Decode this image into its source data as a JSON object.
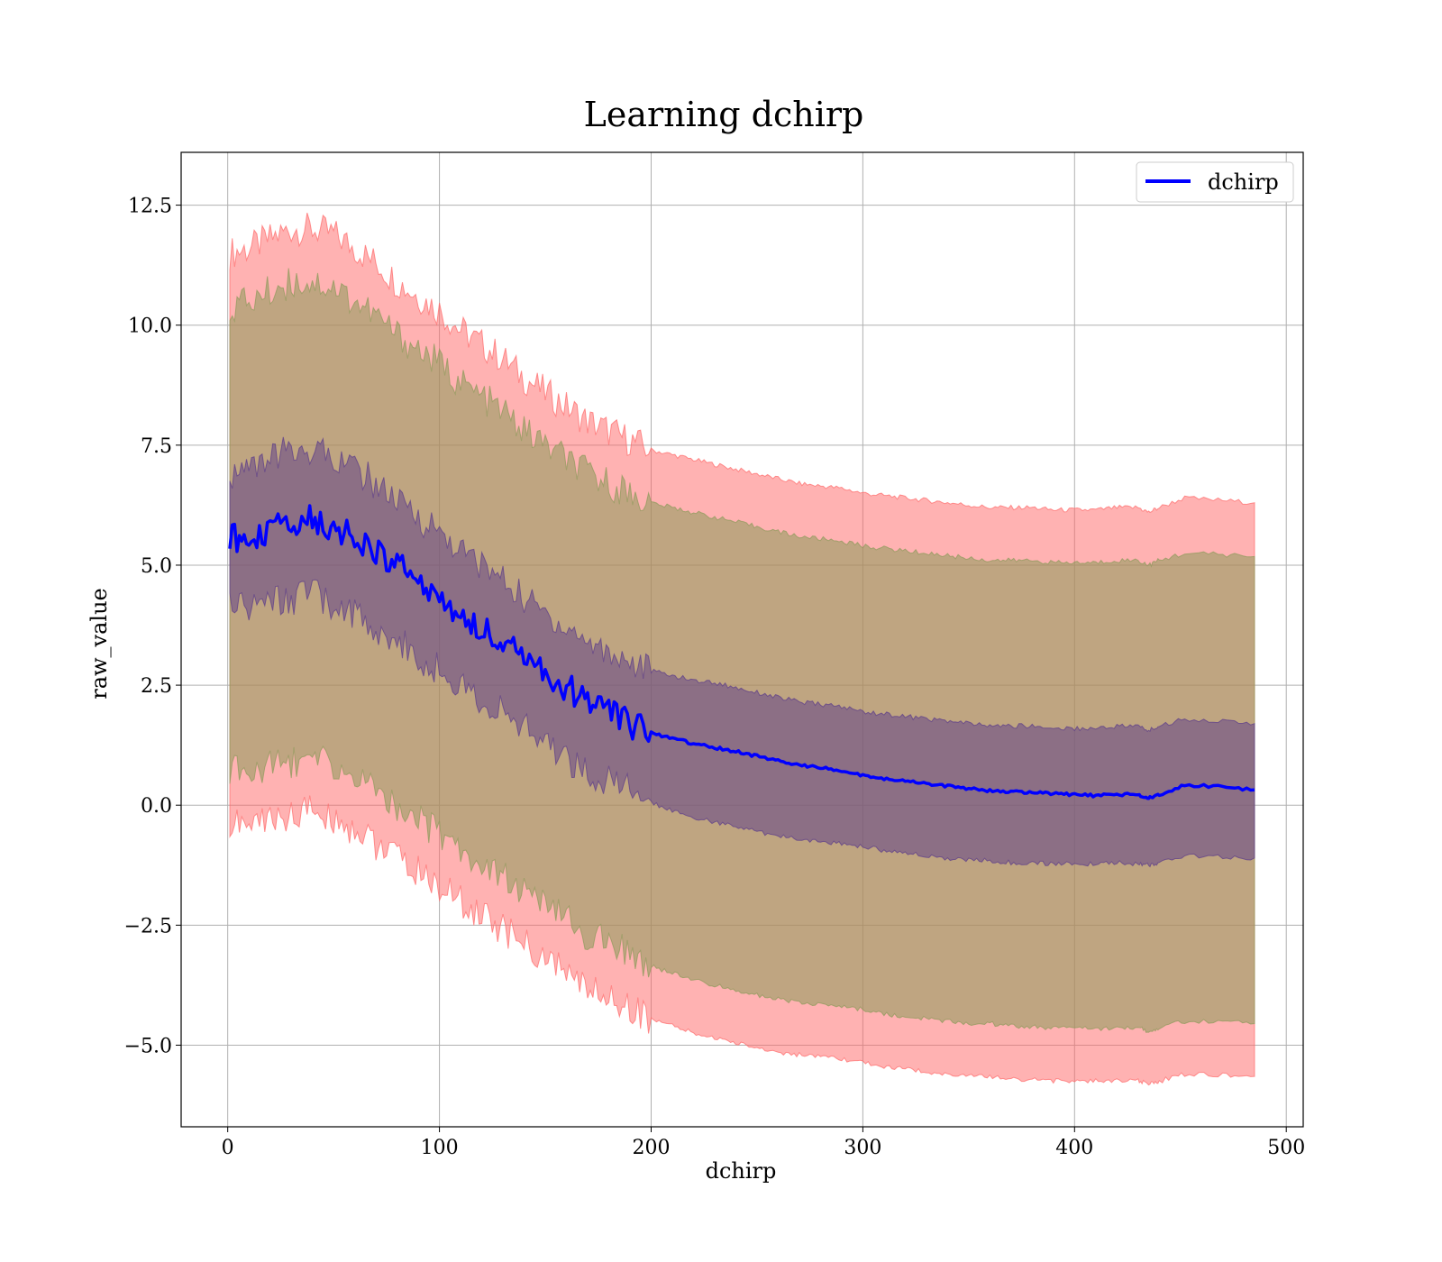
{
  "chart_data": {
    "type": "line",
    "title": "Learning dchirp",
    "xlabel": "dchirp",
    "ylabel": "raw_value",
    "xlim": [
      -22,
      508
    ],
    "ylim": [
      -6.7,
      13.6
    ],
    "xticks": [
      0,
      100,
      200,
      300,
      400,
      500
    ],
    "xtick_labels": [
      "0",
      "100",
      "200",
      "300",
      "400",
      "500"
    ],
    "yticks": [
      -5.0,
      -2.5,
      0.0,
      2.5,
      5.0,
      7.5,
      10.0,
      12.5
    ],
    "ytick_labels": [
      "−5.0",
      "−2.5",
      "0.0",
      "2.5",
      "5.0",
      "7.5",
      "10.0",
      "12.5"
    ],
    "grid": true,
    "legend_position": "top-right",
    "colors": {
      "line": "#0000ff",
      "band_outer": "#ff6666",
      "band_middle": "#8b9a5a",
      "band_inner": "#5a3a8a"
    },
    "series": [
      {
        "name": "dchirp",
        "x": [
          1,
          10,
          20,
          30,
          40,
          50,
          60,
          70,
          80,
          90,
          100,
          110,
          120,
          130,
          140,
          150,
          160,
          170,
          180,
          190,
          200,
          210,
          220,
          230,
          240,
          250,
          260,
          270,
          280,
          290,
          300,
          310,
          320,
          330,
          340,
          350,
          360,
          370,
          380,
          390,
          400,
          410,
          420,
          430,
          435,
          440,
          452,
          470,
          485
        ],
        "y": [
          5.55,
          5.6,
          5.7,
          5.9,
          5.95,
          5.8,
          5.6,
          5.3,
          5.0,
          4.7,
          4.3,
          4.0,
          3.7,
          3.35,
          3.05,
          2.75,
          2.45,
          2.2,
          1.95,
          1.7,
          1.5,
          1.4,
          1.28,
          1.2,
          1.12,
          1.02,
          0.92,
          0.84,
          0.78,
          0.72,
          0.62,
          0.55,
          0.5,
          0.45,
          0.4,
          0.35,
          0.3,
          0.28,
          0.26,
          0.24,
          0.22,
          0.2,
          0.22,
          0.22,
          0.15,
          0.22,
          0.42,
          0.38,
          0.32
        ]
      }
    ],
    "bands": [
      {
        "x": [
          1,
          10,
          20,
          30,
          40,
          50,
          60,
          70,
          80,
          90,
          100,
          110,
          120,
          130,
          140,
          150,
          160,
          170,
          180,
          190,
          200,
          210,
          220,
          230,
          240,
          250,
          260,
          270,
          280,
          290,
          300,
          310,
          320,
          330,
          340,
          350,
          360,
          370,
          380,
          390,
          400,
          410,
          420,
          430,
          435,
          440,
          452,
          470,
          485
        ],
        "upper": [
          11.5,
          11.6,
          11.8,
          12.0,
          12.0,
          11.9,
          11.6,
          11.3,
          10.9,
          10.6,
          10.3,
          9.9,
          9.6,
          9.3,
          8.9,
          8.6,
          8.3,
          8.0,
          7.8,
          7.6,
          7.4,
          7.3,
          7.2,
          7.1,
          7.0,
          6.9,
          6.8,
          6.7,
          6.65,
          6.6,
          6.5,
          6.45,
          6.4,
          6.35,
          6.3,
          6.25,
          6.2,
          6.2,
          6.2,
          6.15,
          6.15,
          6.15,
          6.2,
          6.2,
          6.1,
          6.2,
          6.4,
          6.35,
          6.3
        ],
        "lower": [
          -0.4,
          -0.4,
          -0.3,
          -0.2,
          -0.1,
          -0.3,
          -0.5,
          -0.8,
          -1.1,
          -1.4,
          -1.7,
          -2.0,
          -2.3,
          -2.6,
          -2.9,
          -3.2,
          -3.5,
          -3.8,
          -4.0,
          -4.2,
          -4.45,
          -4.6,
          -4.75,
          -4.85,
          -4.95,
          -5.05,
          -5.15,
          -5.2,
          -5.25,
          -5.3,
          -5.35,
          -5.45,
          -5.5,
          -5.55,
          -5.6,
          -5.65,
          -5.65,
          -5.7,
          -5.72,
          -5.74,
          -5.75,
          -5.75,
          -5.74,
          -5.75,
          -5.8,
          -5.75,
          -5.6,
          -5.62,
          -5.65
        ]
      },
      {
        "x": [
          1,
          10,
          20,
          30,
          40,
          50,
          60,
          70,
          80,
          90,
          100,
          110,
          120,
          130,
          140,
          150,
          160,
          170,
          180,
          190,
          200,
          210,
          220,
          230,
          240,
          250,
          260,
          270,
          280,
          290,
          300,
          310,
          320,
          330,
          340,
          350,
          360,
          370,
          380,
          390,
          400,
          410,
          420,
          430,
          435,
          440,
          452,
          470,
          485
        ],
        "upper": [
          10.4,
          10.5,
          10.7,
          10.9,
          10.9,
          10.8,
          10.5,
          10.2,
          9.8,
          9.5,
          9.2,
          8.8,
          8.5,
          8.2,
          7.8,
          7.5,
          7.2,
          6.9,
          6.7,
          6.5,
          6.3,
          6.2,
          6.1,
          6.0,
          5.9,
          5.8,
          5.7,
          5.6,
          5.55,
          5.5,
          5.4,
          5.35,
          5.3,
          5.25,
          5.2,
          5.15,
          5.1,
          5.1,
          5.1,
          5.05,
          5.05,
          5.05,
          5.1,
          5.1,
          5.0,
          5.1,
          5.25,
          5.22,
          5.18
        ],
        "lower": [
          0.7,
          0.7,
          0.8,
          0.9,
          1.0,
          0.8,
          0.6,
          0.3,
          0.0,
          -0.3,
          -0.6,
          -0.9,
          -1.2,
          -1.5,
          -1.8,
          -2.1,
          -2.4,
          -2.7,
          -2.9,
          -3.1,
          -3.35,
          -3.5,
          -3.65,
          -3.75,
          -3.85,
          -3.95,
          -4.05,
          -4.1,
          -4.15,
          -4.2,
          -4.25,
          -4.35,
          -4.4,
          -4.45,
          -4.5,
          -4.55,
          -4.55,
          -4.6,
          -4.62,
          -4.64,
          -4.65,
          -4.65,
          -4.64,
          -4.65,
          -4.7,
          -4.65,
          -4.5,
          -4.52,
          -4.55
        ]
      },
      {
        "x": [
          1,
          10,
          20,
          30,
          40,
          50,
          60,
          70,
          80,
          90,
          100,
          110,
          120,
          130,
          140,
          150,
          160,
          170,
          180,
          190,
          200,
          210,
          220,
          230,
          240,
          250,
          260,
          270,
          280,
          290,
          300,
          310,
          320,
          330,
          340,
          350,
          360,
          370,
          380,
          390,
          400,
          410,
          420,
          430,
          435,
          440,
          452,
          470,
          485
        ],
        "upper": [
          6.9,
          7.0,
          7.2,
          7.4,
          7.4,
          7.3,
          7.0,
          6.7,
          6.3,
          6.0,
          5.7,
          5.3,
          5.0,
          4.7,
          4.3,
          4.0,
          3.7,
          3.4,
          3.2,
          3.0,
          2.8,
          2.7,
          2.6,
          2.55,
          2.45,
          2.35,
          2.25,
          2.15,
          2.1,
          2.05,
          1.95,
          1.9,
          1.85,
          1.8,
          1.75,
          1.7,
          1.65,
          1.65,
          1.65,
          1.6,
          1.6,
          1.6,
          1.65,
          1.65,
          1.55,
          1.65,
          1.8,
          1.75,
          1.7
        ],
        "lower": [
          4.1,
          4.1,
          4.2,
          4.3,
          4.4,
          4.2,
          4.0,
          3.7,
          3.4,
          3.1,
          2.8,
          2.5,
          2.2,
          1.9,
          1.6,
          1.3,
          1.0,
          0.7,
          0.5,
          0.3,
          0.05,
          -0.1,
          -0.25,
          -0.35,
          -0.45,
          -0.55,
          -0.65,
          -0.7,
          -0.75,
          -0.8,
          -0.85,
          -0.95,
          -1.0,
          -1.05,
          -1.1,
          -1.15,
          -1.15,
          -1.2,
          -1.2,
          -1.22,
          -1.22,
          -1.22,
          -1.2,
          -1.22,
          -1.25,
          -1.2,
          -1.05,
          -1.07,
          -1.1
        ]
      }
    ]
  }
}
